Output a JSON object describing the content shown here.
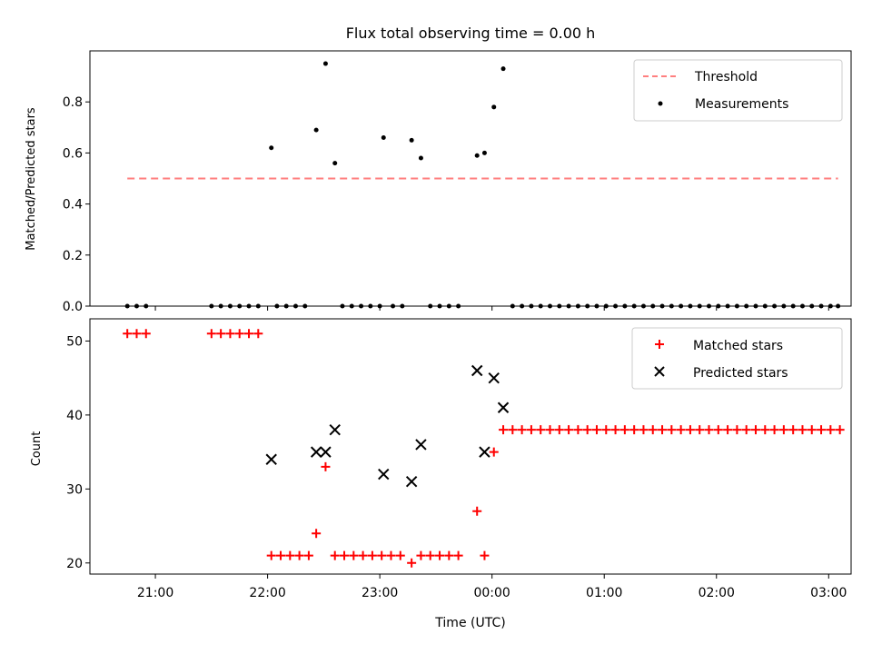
{
  "chart_data": [
    {
      "type": "scatter",
      "title": "Flux total observing time = 0.00 h",
      "xlabel": "",
      "ylabel": "Matched/Predicted stars",
      "xlim": [
        "20:25",
        "03:12"
      ],
      "ylim": [
        0,
        1.0
      ],
      "yticks": [
        0.0,
        0.2,
        0.4,
        0.6,
        0.8
      ],
      "ytick_labels": [
        "0.0",
        "0.2",
        "0.4",
        "0.6",
        "0.8"
      ],
      "legend": "top-right",
      "threshold": {
        "name": "Threshold",
        "value": 0.5,
        "from": "20:45",
        "to": "03:05",
        "color": "#ff7f7f"
      },
      "series": [
        {
          "name": "Measurements",
          "color": "#000000",
          "marker": "dot",
          "points": [
            [
              "20:45",
              0.0
            ],
            [
              "20:50",
              0.0
            ],
            [
              "20:55",
              0.0
            ],
            [
              "21:30",
              0.0
            ],
            [
              "21:35",
              0.0
            ],
            [
              "21:40",
              0.0
            ],
            [
              "21:45",
              0.0
            ],
            [
              "21:50",
              0.0
            ],
            [
              "21:55",
              0.0
            ],
            [
              "22:02",
              0.62
            ],
            [
              "22:05",
              0.0
            ],
            [
              "22:10",
              0.0
            ],
            [
              "22:15",
              0.0
            ],
            [
              "22:20",
              0.0
            ],
            [
              "22:26",
              0.69
            ],
            [
              "22:31",
              0.95
            ],
            [
              "22:36",
              0.56
            ],
            [
              "22:40",
              0.0
            ],
            [
              "22:45",
              0.0
            ],
            [
              "22:50",
              0.0
            ],
            [
              "22:55",
              0.0
            ],
            [
              "23:00",
              0.0
            ],
            [
              "23:02",
              0.66
            ],
            [
              "23:07",
              0.0
            ],
            [
              "23:12",
              0.0
            ],
            [
              "23:17",
              0.65
            ],
            [
              "23:22",
              0.58
            ],
            [
              "23:27",
              0.0
            ],
            [
              "23:32",
              0.0
            ],
            [
              "23:37",
              0.0
            ],
            [
              "23:42",
              0.0
            ],
            [
              "23:52",
              0.59
            ],
            [
              "23:56",
              0.6
            ],
            [
              "00:01",
              0.78
            ],
            [
              "00:06",
              0.93
            ],
            [
              "00:11",
              0.0
            ],
            [
              "00:16",
              0.0
            ],
            [
              "00:21",
              0.0
            ],
            [
              "00:26",
              0.0
            ],
            [
              "00:31",
              0.0
            ],
            [
              "00:36",
              0.0
            ],
            [
              "00:41",
              0.0
            ],
            [
              "00:46",
              0.0
            ],
            [
              "00:51",
              0.0
            ],
            [
              "00:56",
              0.0
            ],
            [
              "01:01",
              0.0
            ],
            [
              "01:06",
              0.0
            ],
            [
              "01:11",
              0.0
            ],
            [
              "01:16",
              0.0
            ],
            [
              "01:21",
              0.0
            ],
            [
              "01:26",
              0.0
            ],
            [
              "01:31",
              0.0
            ],
            [
              "01:36",
              0.0
            ],
            [
              "01:41",
              0.0
            ],
            [
              "01:46",
              0.0
            ],
            [
              "01:51",
              0.0
            ],
            [
              "01:56",
              0.0
            ],
            [
              "02:01",
              0.0
            ],
            [
              "02:06",
              0.0
            ],
            [
              "02:11",
              0.0
            ],
            [
              "02:16",
              0.0
            ],
            [
              "02:21",
              0.0
            ],
            [
              "02:26",
              0.0
            ],
            [
              "02:31",
              0.0
            ],
            [
              "02:36",
              0.0
            ],
            [
              "02:41",
              0.0
            ],
            [
              "02:46",
              0.0
            ],
            [
              "02:51",
              0.0
            ],
            [
              "02:56",
              0.0
            ],
            [
              "03:01",
              0.0
            ],
            [
              "03:05",
              0.0
            ]
          ]
        }
      ]
    },
    {
      "type": "scatter",
      "title": "",
      "xlabel": "Time (UTC)",
      "ylabel": "Count",
      "xlim": [
        "20:25",
        "03:12"
      ],
      "ylim": [
        18.5,
        53.0
      ],
      "xticks": [
        "21:00",
        "22:00",
        "23:00",
        "00:00",
        "01:00",
        "02:00",
        "03:00"
      ],
      "xtick_labels": [
        "21:00",
        "22:00",
        "23:00",
        "00:00",
        "01:00",
        "02:00",
        "03:00"
      ],
      "yticks": [
        20,
        30,
        40,
        50
      ],
      "ytick_labels": [
        "20",
        "30",
        "40",
        "50"
      ],
      "legend": "top-right",
      "series": [
        {
          "name": "Matched stars",
          "color": "#ff0000",
          "marker": "plus",
          "points": [
            [
              "20:45",
              51
            ],
            [
              "20:50",
              51
            ],
            [
              "20:55",
              51
            ],
            [
              "21:30",
              51
            ],
            [
              "21:35",
              51
            ],
            [
              "21:40",
              51
            ],
            [
              "21:45",
              51
            ],
            [
              "21:50",
              51
            ],
            [
              "21:55",
              51
            ],
            [
              "22:02",
              21
            ],
            [
              "22:07",
              21
            ],
            [
              "22:12",
              21
            ],
            [
              "22:17",
              21
            ],
            [
              "22:22",
              21
            ],
            [
              "22:26",
              24
            ],
            [
              "22:31",
              33
            ],
            [
              "22:36",
              21
            ],
            [
              "22:41",
              21
            ],
            [
              "22:46",
              21
            ],
            [
              "22:51",
              21
            ],
            [
              "22:56",
              21
            ],
            [
              "23:01",
              21
            ],
            [
              "23:06",
              21
            ],
            [
              "23:11",
              21
            ],
            [
              "23:17",
              20
            ],
            [
              "23:22",
              21
            ],
            [
              "23:27",
              21
            ],
            [
              "23:32",
              21
            ],
            [
              "23:37",
              21
            ],
            [
              "23:42",
              21
            ],
            [
              "23:52",
              27
            ],
            [
              "23:56",
              21
            ],
            [
              "00:01",
              35
            ],
            [
              "00:06",
              38
            ],
            [
              "00:11",
              38
            ],
            [
              "00:16",
              38
            ],
            [
              "00:21",
              38
            ],
            [
              "00:26",
              38
            ],
            [
              "00:31",
              38
            ],
            [
              "00:36",
              38
            ],
            [
              "00:41",
              38
            ],
            [
              "00:46",
              38
            ],
            [
              "00:51",
              38
            ],
            [
              "00:56",
              38
            ],
            [
              "01:01",
              38
            ],
            [
              "01:06",
              38
            ],
            [
              "01:11",
              38
            ],
            [
              "01:16",
              38
            ],
            [
              "01:21",
              38
            ],
            [
              "01:26",
              38
            ],
            [
              "01:31",
              38
            ],
            [
              "01:36",
              38
            ],
            [
              "01:41",
              38
            ],
            [
              "01:46",
              38
            ],
            [
              "01:51",
              38
            ],
            [
              "01:56",
              38
            ],
            [
              "02:01",
              38
            ],
            [
              "02:06",
              38
            ],
            [
              "02:11",
              38
            ],
            [
              "02:16",
              38
            ],
            [
              "02:21",
              38
            ],
            [
              "02:26",
              38
            ],
            [
              "02:31",
              38
            ],
            [
              "02:36",
              38
            ],
            [
              "02:41",
              38
            ],
            [
              "02:46",
              38
            ],
            [
              "02:51",
              38
            ],
            [
              "02:56",
              38
            ],
            [
              "03:01",
              38
            ],
            [
              "03:06",
              38
            ]
          ]
        },
        {
          "name": "Predicted stars",
          "color": "#000000",
          "marker": "x",
          "points": [
            [
              "22:02",
              34
            ],
            [
              "22:26",
              35
            ],
            [
              "22:31",
              35
            ],
            [
              "22:36",
              38
            ],
            [
              "23:02",
              32
            ],
            [
              "23:17",
              31
            ],
            [
              "23:22",
              36
            ],
            [
              "23:52",
              46
            ],
            [
              "23:56",
              35
            ],
            [
              "00:01",
              45
            ],
            [
              "00:06",
              41
            ]
          ]
        }
      ]
    }
  ]
}
